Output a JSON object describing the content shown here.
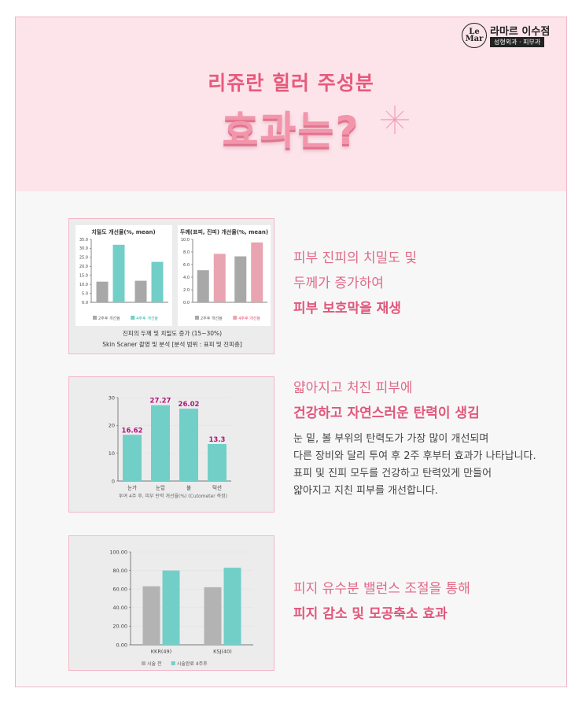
{
  "brand": {
    "mark": "Le Mar",
    "name": "라마르 이수점",
    "sub": "성형외과 · 피부과"
  },
  "hero": {
    "line1": "리쥬란 힐러 주성분",
    "line2": "효과는?"
  },
  "colors": {
    "pink_title": "#e75a7c",
    "teal": "#72cfc8",
    "gray_bar": "#b3b3b3",
    "rose_bar": "#e8a4b0",
    "magenta_label": "#b0157a"
  },
  "sections": [
    {
      "lines": [
        "피부 진피의 치밀도 및",
        "두께가 증가하여"
      ],
      "bold": "피부 보호막을 재생"
    },
    {
      "lines": [
        "얇아지고 처진 피부에"
      ],
      "bold": "건강하고 자연스러운 탄력이 생김",
      "body": [
        "눈 밑, 볼 부위의 탄력도가 가장 많이 개선되며",
        "다른 장비와 달리 투여 후 2주 후부터 효과가 나타납니다.",
        "표피 및 진피 모두를 건강하고 탄력있게 만들어",
        "얇아지고 지친 피부를 개선합니다."
      ]
    },
    {
      "lines": [
        "피지 유수분 밸런스 조절을 통해"
      ],
      "bold": "피지 감소 및 모공축소 효과"
    }
  ],
  "chart_data": [
    {
      "type": "bar",
      "title": "치밀도 개선율(%, mean)",
      "categories": [
        "",
        ""
      ],
      "series": [
        {
          "name": "2주후 개선율",
          "values": [
            11.5,
            12
          ]
        },
        {
          "name": "4주후 개선율",
          "values": [
            32,
            22.5
          ]
        }
      ],
      "ylim": [
        0,
        35
      ],
      "yticks": [
        "35.0",
        "30.0",
        "25.0",
        "20.0",
        "15.0",
        "10.0",
        "5.0",
        "0.0"
      ],
      "caption": [
        "진피의 두께 및 치밀도 증가 (15~30%)",
        "Skin Scaner 촬영 및 분석 [분석 범위 : 표피 및 진피층]"
      ]
    },
    {
      "type": "bar",
      "title": "두께(표피, 진피) 개선율(%, mean)",
      "categories": [
        "",
        ""
      ],
      "series": [
        {
          "name": "2주후 개선율",
          "values": [
            5.1,
            7.3
          ]
        },
        {
          "name": "4주후 개선율",
          "values": [
            7.7,
            9.5
          ]
        }
      ],
      "ylim": [
        0,
        10
      ],
      "yticks": [
        "10.0",
        "8.0",
        "6.0",
        "4.0",
        "2.0",
        "0.0"
      ]
    },
    {
      "type": "bar",
      "categories": [
        "눈가",
        "눈밑",
        "볼",
        "턱선"
      ],
      "values": [
        16.62,
        27.27,
        26.02,
        13.3
      ],
      "value_labels": [
        "16.62",
        "27.27",
        "26.02",
        "13.3"
      ],
      "ylim": [
        0,
        30
      ],
      "yticks": [
        "30",
        "20",
        "10",
        "0"
      ],
      "caption": "투여 4주 후, 피부 탄력 개선율(%) (Cutometer 측정)"
    },
    {
      "type": "bar",
      "categories": [
        "KKR(49)",
        "KSJ(40)"
      ],
      "series": [
        {
          "name": "시술 전",
          "values": [
            63,
            62
          ]
        },
        {
          "name": "시술완료 4주후",
          "values": [
            80,
            83
          ]
        }
      ],
      "ylim": [
        0,
        100
      ],
      "yticks": [
        "100.00",
        "80.00",
        "60.00",
        "40.00",
        "20.00",
        "0.00"
      ]
    }
  ]
}
